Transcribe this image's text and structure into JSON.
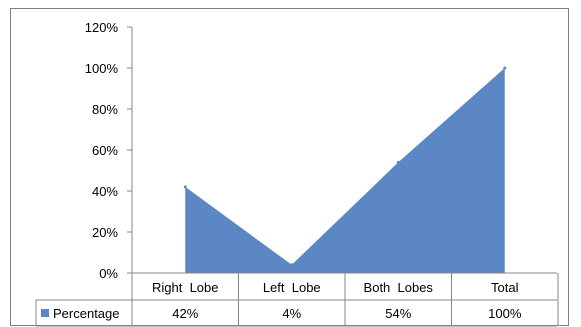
{
  "chart_data": {
    "type": "area",
    "title": "",
    "xlabel": "",
    "ylabel": "",
    "categories": [
      "Right  Lobe",
      "Left  Lobe",
      "Both  Lobes",
      "Total"
    ],
    "series": [
      {
        "name": "Percentage",
        "values": [
          42,
          4,
          54,
          100
        ],
        "labels": [
          "42%",
          "4%",
          "54%",
          "100%"
        ],
        "color": "#5b87c5"
      }
    ],
    "ylim": [
      0,
      120
    ],
    "yticks": [
      0,
      20,
      40,
      60,
      80,
      100,
      120
    ],
    "ytick_labels": [
      "0%",
      "20%",
      "40%",
      "60%",
      "80%",
      "100%",
      "120%"
    ],
    "grid": false,
    "data_table": true,
    "legend": "data-table"
  }
}
